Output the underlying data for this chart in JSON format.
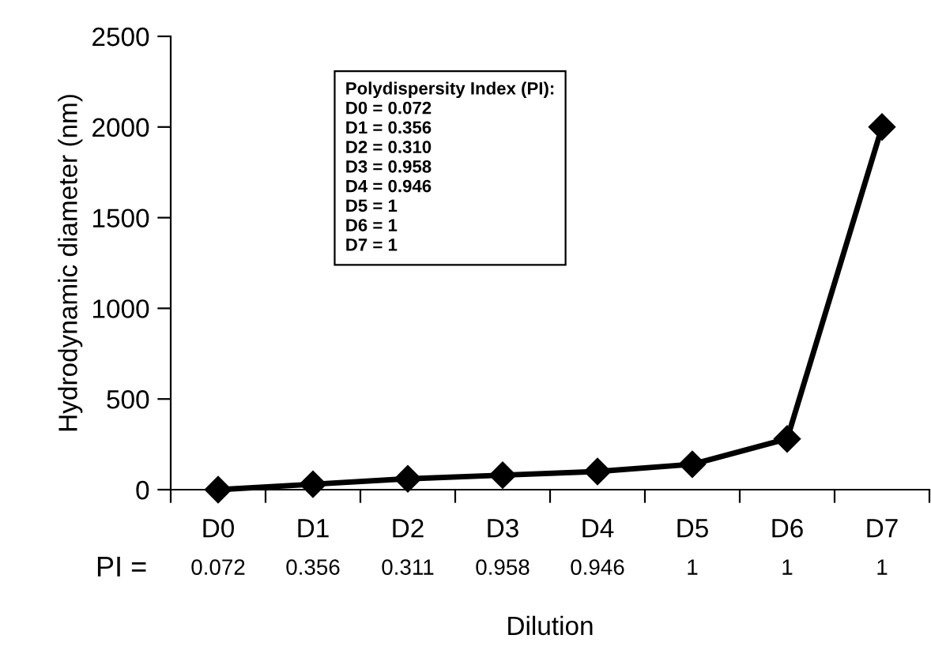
{
  "chart_data": {
    "type": "line",
    "xlabel": "Dilution",
    "ylabel": "Hydrodynamic diameter (nm)",
    "categories": [
      "D0",
      "D1",
      "D2",
      "D3",
      "D4",
      "D5",
      "D6",
      "D7"
    ],
    "series": [
      {
        "color": "#000000",
        "values": [
          0,
          30,
          60,
          80,
          100,
          140,
          280,
          2000
        ]
      }
    ],
    "marker": "diamond",
    "line_style": "solid",
    "ylim": [
      0,
      2500
    ],
    "yticks": [
      0,
      500,
      1000,
      1500,
      2000,
      2500
    ],
    "grid": false,
    "annotations": [
      "Polydispersity Index (PI):\nD0 = 0.072\nD1 = 0.356\nD2 = 0.310\nD3 = 0.958\nD4 = 0.946\nD5 = 1\nD6 = 1\nD7 = 1",
      "PI =",
      "0.072",
      "0.356",
      "0.311",
      "0.958",
      "0.946",
      "1",
      "1",
      "1"
    ]
  }
}
